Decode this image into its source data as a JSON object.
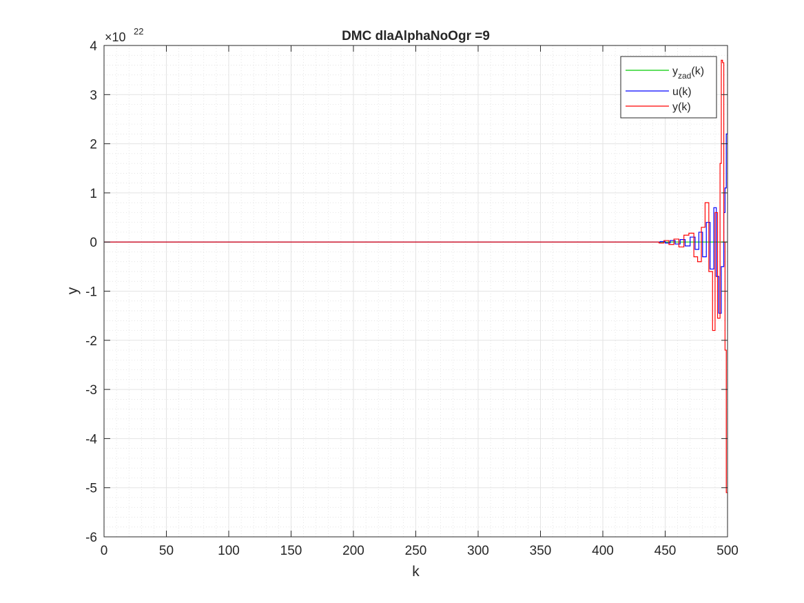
{
  "chart_data": {
    "type": "line",
    "title": "DMC dlaAlphaNoOgr =9",
    "xlabel": "k",
    "ylabel": "y",
    "exponent": {
      "base": "×10",
      "power": "22"
    },
    "xlim": [
      0,
      500
    ],
    "ylim": [
      -6,
      4
    ],
    "xticks": [
      0,
      50,
      100,
      150,
      200,
      250,
      300,
      350,
      400,
      450,
      500
    ],
    "yticks": [
      -6,
      -5,
      -4,
      -3,
      -2,
      -1,
      0,
      1,
      2,
      3,
      4
    ],
    "grid": true,
    "minor_grid": true,
    "legend_position": "top-right",
    "series": [
      {
        "name": "y_zad(k)",
        "legend_main": "y",
        "legend_sub": "zad",
        "legend_tail": "(k)",
        "color": "#00cc00",
        "step": true,
        "x": [
          0,
          500
        ],
        "y": [
          0,
          0
        ]
      },
      {
        "name": "u(k)",
        "legend_main": "u(k)",
        "color": "#0000ff",
        "step": true,
        "x": [
          0,
          440,
          446,
          450,
          454,
          458,
          462,
          466,
          470,
          474,
          477,
          480,
          483,
          486,
          489,
          491,
          493,
          495,
          497,
          498,
          499,
          500
        ],
        "y": [
          0,
          0,
          0.01,
          -0.02,
          0.03,
          -0.04,
          0.05,
          -0.08,
          0.1,
          -0.15,
          0.2,
          -0.3,
          0.4,
          -0.55,
          0.7,
          -0.7,
          -1.45,
          -0.5,
          0.6,
          1.1,
          2.2,
          2.2
        ]
      },
      {
        "name": "y(k)",
        "legend_main": "y(k)",
        "color": "#ff0000",
        "step": true,
        "x": [
          0,
          438,
          445,
          449,
          453,
          457,
          461,
          465,
          469,
          473,
          476,
          479,
          482,
          485,
          488,
          490,
          492,
          494,
          495,
          496,
          497,
          498,
          499,
          500
        ],
        "y": [
          0,
          0,
          -0.02,
          0.03,
          -0.05,
          0.06,
          -0.1,
          0.14,
          0.18,
          -0.3,
          -0.4,
          0.3,
          0.8,
          -0.6,
          -1.8,
          0.6,
          -1.55,
          1.6,
          3.7,
          3.65,
          0,
          -2.2,
          -5.1,
          -5.1
        ]
      }
    ]
  }
}
